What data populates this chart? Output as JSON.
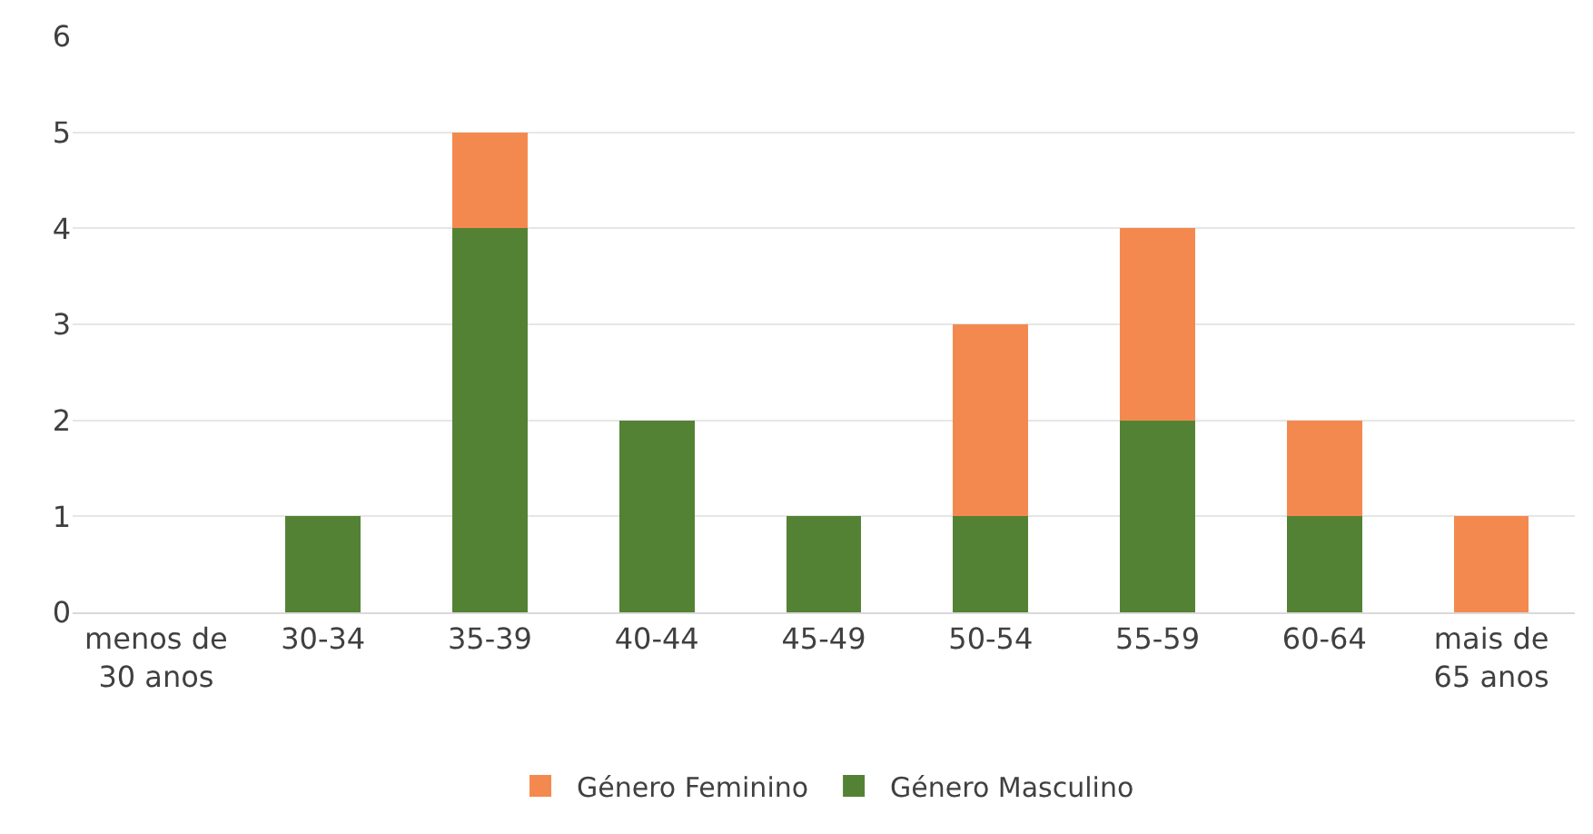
{
  "chart_data": {
    "type": "bar",
    "stacked": true,
    "categories": [
      "menos de\n30 anos",
      "30-34",
      "35-39",
      "40-44",
      "45-49",
      "50-54",
      "55-59",
      "60-64",
      "mais de\n65 anos"
    ],
    "series": [
      {
        "name": "Género Masculino",
        "color": "#548235",
        "values": [
          0,
          1,
          4,
          2,
          1,
          1,
          2,
          1,
          0
        ]
      },
      {
        "name": "Género Feminino",
        "color": "#f4894f",
        "values": [
          0,
          0,
          1,
          0,
          0,
          2,
          2,
          1,
          1
        ]
      }
    ],
    "ylim": [
      0,
      6
    ],
    "yticks": [
      0,
      1,
      2,
      3,
      4,
      5,
      6
    ],
    "grid": "y",
    "legend": "bottom"
  }
}
